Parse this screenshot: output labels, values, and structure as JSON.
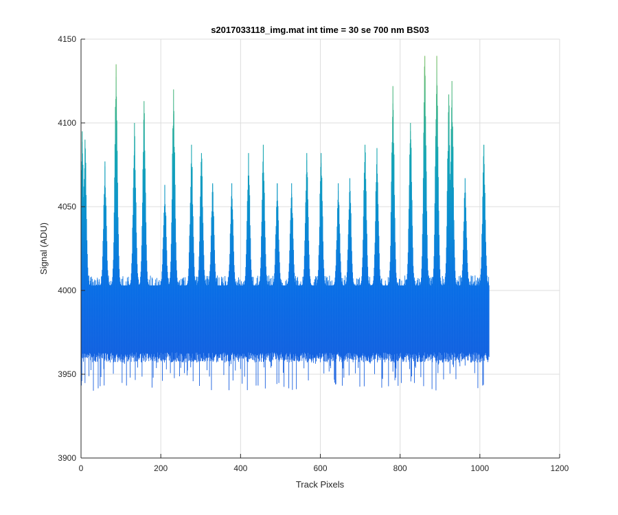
{
  "chart_data": {
    "type": "line",
    "title": "s2017033118_img.mat int time = 30 se  700 nm BS03",
    "xlabel": "Track Pixels",
    "ylabel": "Signal (ADU)",
    "xlim": [
      0,
      1200
    ],
    "ylim": [
      3900,
      4150
    ],
    "xticks": [
      0,
      200,
      400,
      600,
      800,
      1000,
      1200
    ],
    "yticks": [
      3900,
      3950,
      4000,
      4050,
      4100,
      4150
    ],
    "xtick_labels": [
      "0",
      "200",
      "400",
      "600",
      "800",
      "1000",
      "1200"
    ],
    "ytick_labels": [
      "3900",
      "3950",
      "4000",
      "4050",
      "4100",
      "4150"
    ],
    "grid": true,
    "baseline": {
      "x_start": 0,
      "x_end": 1023,
      "band_low": 3960,
      "band_high": 4003,
      "noise_min": 3940
    },
    "series_style": "many overlapping noisy traces, blue at low signal shading to teal and green at high signal",
    "peaks": [
      {
        "x": 3,
        "y": 4095
      },
      {
        "x": 10,
        "y": 4090
      },
      {
        "x": 60,
        "y": 4077
      },
      {
        "x": 88,
        "y": 4135
      },
      {
        "x": 134,
        "y": 4100
      },
      {
        "x": 158,
        "y": 4113
      },
      {
        "x": 210,
        "y": 4063
      },
      {
        "x": 232,
        "y": 4120
      },
      {
        "x": 277,
        "y": 4087
      },
      {
        "x": 302,
        "y": 4082
      },
      {
        "x": 330,
        "y": 4064
      },
      {
        "x": 378,
        "y": 4064
      },
      {
        "x": 420,
        "y": 4082
      },
      {
        "x": 457,
        "y": 4087
      },
      {
        "x": 492,
        "y": 4064
      },
      {
        "x": 528,
        "y": 4064
      },
      {
        "x": 566,
        "y": 4082
      },
      {
        "x": 602,
        "y": 4082
      },
      {
        "x": 645,
        "y": 4064
      },
      {
        "x": 674,
        "y": 4067
      },
      {
        "x": 712,
        "y": 4087
      },
      {
        "x": 742,
        "y": 4085
      },
      {
        "x": 782,
        "y": 4122
      },
      {
        "x": 826,
        "y": 4100
      },
      {
        "x": 862,
        "y": 4140
      },
      {
        "x": 892,
        "y": 4140
      },
      {
        "x": 922,
        "y": 4117
      },
      {
        "x": 930,
        "y": 4125
      },
      {
        "x": 963,
        "y": 4067
      },
      {
        "x": 1010,
        "y": 4087
      }
    ]
  }
}
